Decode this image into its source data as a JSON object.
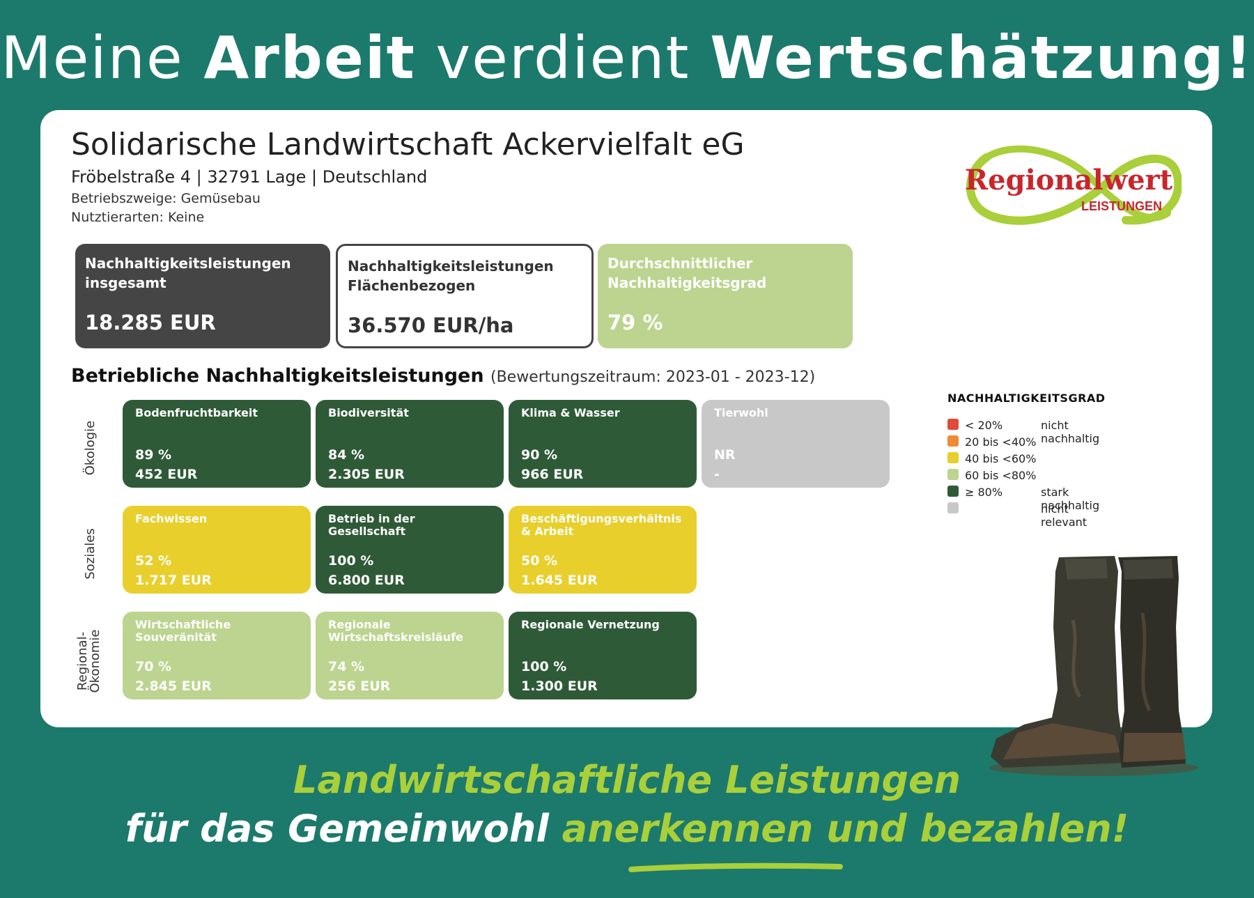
{
  "headline": {
    "part1": "Meine ",
    "part2": "Arbeit",
    "part3": " verdient ",
    "part4": "Wertschätzung!"
  },
  "farm": {
    "name": "Solidarische Landwirtschaft Ackervielfalt eG",
    "address": "Fröbelstraße 4 | 32791 Lage | Deutschland",
    "branches": "Betriebszweige: Gemüsebau",
    "livestock": "Nutztierarten: Keine"
  },
  "logo": {
    "name": "Regionalwert",
    "sub": "LEISTUNGEN"
  },
  "summary": [
    {
      "label": "Nachhaltigkeitsleistungen insgesamt",
      "value": "18.285 EUR"
    },
    {
      "label": "Nachhaltigkeitsleistungen Flächenbezogen",
      "value": "36.570 EUR/ha"
    },
    {
      "label": "Durchschnittlicher Nachhaltigkeitsgrad",
      "value": "79 %"
    }
  ],
  "section": {
    "title": "Betriebliche Nachhaltigkeitsleistungen",
    "period": "(Bewertungszeitraum: 2023-01 - 2023-12)"
  },
  "rows": [
    {
      "label": "Ökologie",
      "tiles": [
        {
          "name": "Bodenfruchtbarkeit",
          "pct": "89 %",
          "eur": "452 EUR",
          "level": "dark"
        },
        {
          "name": "Biodiversität",
          "pct": "84 %",
          "eur": "2.305 EUR",
          "level": "dark"
        },
        {
          "name": "Klima & Wasser",
          "pct": "90 %",
          "eur": "966 EUR",
          "level": "dark"
        },
        {
          "name": "Tierwohl",
          "pct": "NR",
          "eur": "-",
          "level": "grey"
        }
      ]
    },
    {
      "label": "Soziales",
      "tiles": [
        {
          "name": "Fachwissen",
          "pct": "52 %",
          "eur": "1.717 EUR",
          "level": "yellow"
        },
        {
          "name": "Betrieb in der Gesellschaft",
          "pct": "100 %",
          "eur": "6.800 EUR",
          "level": "dark"
        },
        {
          "name": "Beschäftigungsverhältnis & Arbeit",
          "pct": "50 %",
          "eur": "1.645 EUR",
          "level": "yellow"
        }
      ]
    },
    {
      "label": "Regional-Ökonomie",
      "label1": "Regional-",
      "label2": "Ökonomie",
      "tiles": [
        {
          "name": "Wirtschaftliche Souveränität",
          "pct": "70 %",
          "eur": "2.845 EUR",
          "level": "light"
        },
        {
          "name": "Regionale Wirtschaftskreisläufe",
          "pct": "74 %",
          "eur": "256 EUR",
          "level": "light"
        },
        {
          "name": "Regionale Vernetzung",
          "pct": "100 %",
          "eur": "1.300 EUR",
          "level": "dark"
        }
      ]
    }
  ],
  "legend": {
    "title": "NACHHALTIGKEITSGRAD",
    "items": [
      {
        "range": "< 20%",
        "desc": "nicht nachhaltig",
        "color": "#e04a3a"
      },
      {
        "range": "20 bis <40%",
        "desc": "",
        "color": "#f08a34"
      },
      {
        "range": "40 bis <60%",
        "desc": "",
        "color": "#e8cf2c"
      },
      {
        "range": "60 bis <80%",
        "desc": "",
        "color": "#bcd48f"
      },
      {
        "range": "≥ 80%",
        "desc": "stark nachhaltig",
        "color": "#2f5a38"
      },
      {
        "range": "",
        "desc": "nicht relevant",
        "color": "#c8c8c8"
      }
    ]
  },
  "colors": {
    "background": "#1c7a6c",
    "dark": "#2f5a38",
    "yellow": "#e8cf2c",
    "light": "#bcd48f",
    "grey": "#c8c8c8",
    "summary_dark": "#454545",
    "accent_green": "#a9cf3a",
    "logo_red": "#c8262c"
  },
  "slogan": {
    "line1": "Landwirtschaftliche Leistungen",
    "line2_white": "für das Gemeinwohl ",
    "line2_green": "anerkennen und bezahlen!"
  }
}
